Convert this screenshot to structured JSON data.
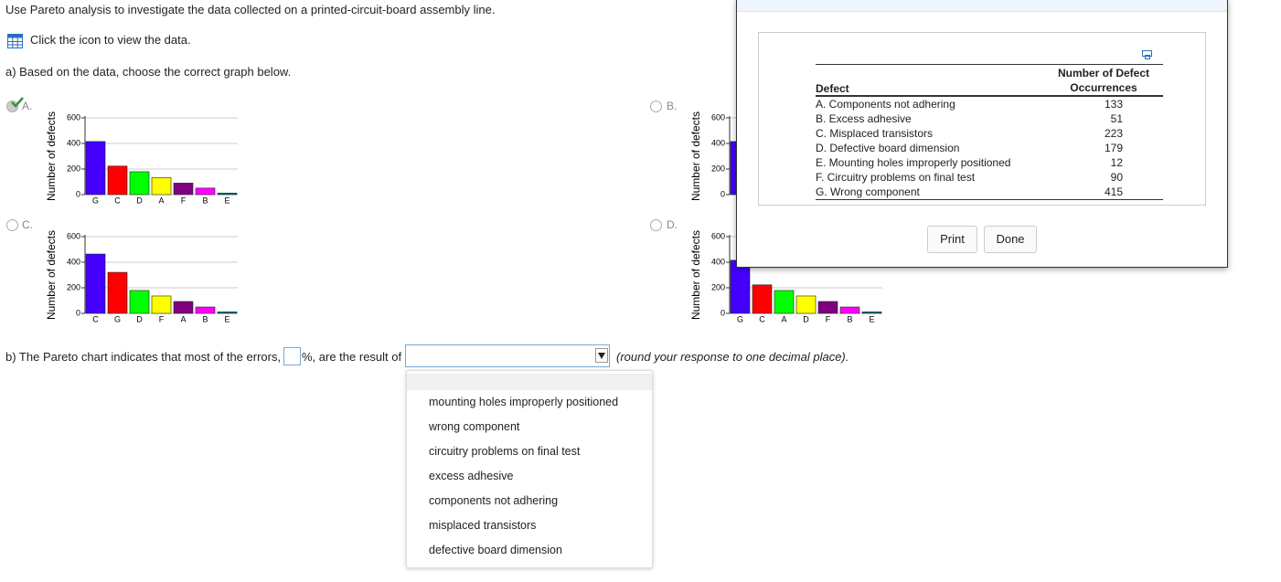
{
  "intro": "Use Pareto analysis to investigate the data collected on a printed-circuit-board assembly line.",
  "data_link": "Click the icon to view the data.",
  "part_a": "a) Based on the data, choose the correct graph below.",
  "option_labels": [
    "A.",
    "B.",
    "C.",
    "D."
  ],
  "chart_data": [
    {
      "type": "bar",
      "ylabel": "Number of defects",
      "categories": [
        "G",
        "C",
        "D",
        "A",
        "F",
        "B",
        "E"
      ],
      "values": [
        415,
        223,
        179,
        133,
        90,
        51,
        12
      ],
      "colors": [
        "#4400ff",
        "#ff0000",
        "#00ff00",
        "#ffff00",
        "#800080",
        "#ff00ff",
        "#008080"
      ],
      "ylim": [
        0,
        600
      ],
      "yticks": [
        0,
        200,
        400,
        600
      ],
      "grid": true
    },
    {
      "type": "bar",
      "ylabel": "Number of defects",
      "categories": [
        null
      ],
      "values": [
        415
      ],
      "colors": [
        "#4400ff"
      ],
      "ylim": [
        0,
        600
      ],
      "yticks": [
        0,
        200,
        400,
        600
      ],
      "grid": true
    },
    {
      "type": "bar",
      "ylabel": "Number of defects",
      "categories": [
        "C",
        "G",
        "D",
        "F",
        "A",
        "B",
        "E"
      ],
      "values": [
        464,
        321,
        179,
        136,
        93,
        50,
        12
      ],
      "colors": [
        "#4400ff",
        "#ff0000",
        "#00ff00",
        "#ffff00",
        "#800080",
        "#ff00ff",
        "#008080"
      ],
      "ylim": [
        0,
        600
      ],
      "yticks": [
        0,
        200,
        400,
        600
      ],
      "grid": true
    },
    {
      "type": "bar",
      "ylabel": "Number of defects",
      "categories": [
        "G",
        "C",
        "A",
        "D",
        "F",
        "B",
        "E"
      ],
      "values": [
        415,
        223,
        179,
        136,
        93,
        50,
        12
      ],
      "colors": [
        "#4400ff",
        "#ff0000",
        "#00ff00",
        "#ffff00",
        "#800080",
        "#ff00ff",
        "#008080"
      ],
      "ylim": [
        0,
        600
      ],
      "yticks": [
        0,
        200,
        400,
        600
      ],
      "grid": true
    }
  ],
  "part_b": {
    "before": "b) The Pareto chart indicates that most of the errors,",
    "middle": "%, are the result of",
    "after": "(round your response to one decimal place)."
  },
  "dropdown_options": [
    "mounting holes improperly positioned",
    "wrong component",
    "circuitry problems on final test",
    "excess adhesive",
    "components not adhering",
    "misplaced transistors",
    "defective board dimension"
  ],
  "data_table": {
    "headers": [
      "Defect",
      "Number of Defect Occurrences"
    ],
    "rows": [
      [
        "A. Components not adhering",
        133
      ],
      [
        "B. Excess adhesive",
        51
      ],
      [
        "C. Misplaced transistors",
        223
      ],
      [
        "D. Defective board dimension",
        179
      ],
      [
        "E. Mounting holes improperly positioned",
        12
      ],
      [
        "F. Circuitry problems on final test",
        90
      ],
      [
        "G. Wrong component",
        415
      ]
    ]
  },
  "buttons": [
    "Print",
    "Done"
  ]
}
